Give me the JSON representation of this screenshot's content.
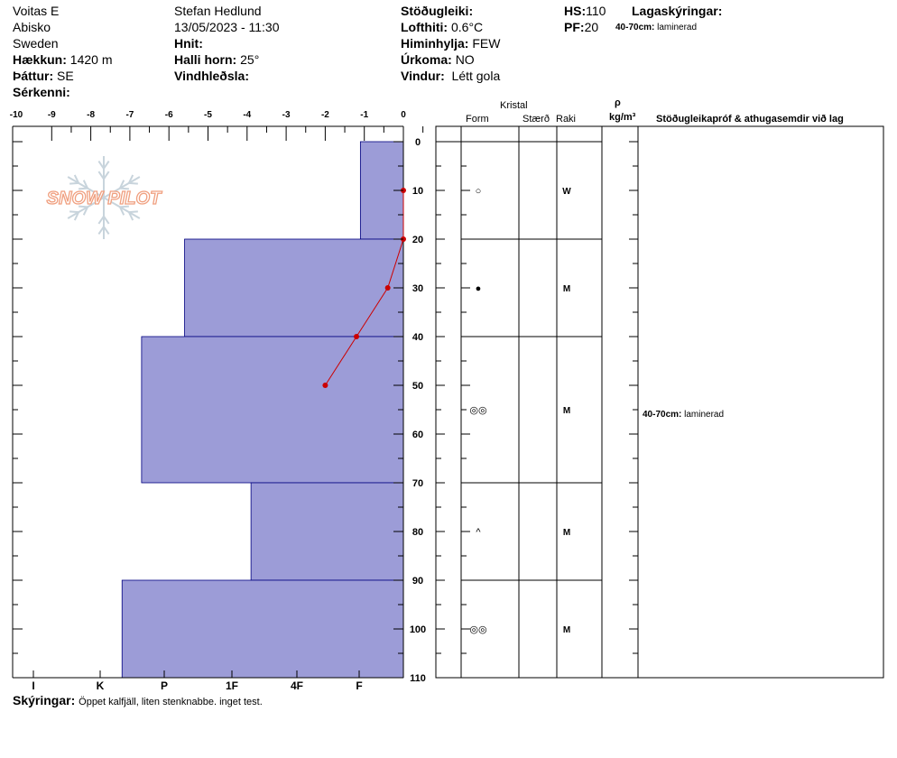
{
  "header": {
    "col1": {
      "location": "Voitas E",
      "region": "Abisko",
      "country": "Sweden",
      "elevation_label": "Hækkun:",
      "elevation": "1420 m",
      "aspect_label": "Þáttur:",
      "aspect": "SE",
      "specifics_label": "Sérkenni:"
    },
    "col2": {
      "observer": "Stefan Hedlund",
      "datetime": "13/05/2023 - 11:30",
      "coords_label": "Hnit:",
      "slope_label": "Halli horn:",
      "slope": "25°",
      "wind_loading_label": "Vindhleðsla:"
    },
    "col3": {
      "stability_label": "Stöðugleiki:",
      "air_temp_label": "Lofthiti:",
      "air_temp": "0.6°C",
      "sky_label": "Himinhylja:",
      "sky": "FEW",
      "precip_label": "Úrkoma:",
      "precip": "NO",
      "wind_label": "Vindur:",
      "wind": "Létt gola"
    },
    "col4": {
      "hs_label": "HS:",
      "hs": "110",
      "pf_label": "PF:",
      "pf": "20",
      "layer_notes_label": "Lagaskýringar:",
      "layer_note_range": "40-70cm:",
      "layer_note_text": "laminerad"
    }
  },
  "logo_text": "SNOW PILOT",
  "table_headers": {
    "crystal": "Kristal",
    "form": "Form",
    "size": "Stærð",
    "moisture": "Raki",
    "rho": "ρ",
    "density_unit": "kg/m³",
    "comments": "Stöðugleikapróf & athugasemdir við lag"
  },
  "comment_rows": [
    {
      "range": "40-70cm:",
      "text": "laminerad"
    }
  ],
  "remarks_label": "Skýringar:",
  "remarks": "Öppet kalfjäll, liten stenknabbe. inget test.",
  "colors": {
    "hardness_fill": "#9c9cd7",
    "temp_line": "#cc0000",
    "logo": "#f0a080"
  },
  "chart_data": {
    "type": "snow_profile",
    "depth_axis": {
      "range": [
        0,
        110
      ],
      "ticks": [
        0,
        10,
        20,
        30,
        40,
        50,
        60,
        70,
        80,
        90,
        100,
        110
      ]
    },
    "temperature_axis": {
      "range": [
        -10,
        0
      ],
      "ticks": [
        -10,
        -9,
        -8,
        -7,
        -6,
        -5,
        -4,
        -3,
        -2,
        -1,
        0
      ]
    },
    "hardness_axis": {
      "labels": [
        "I",
        "K",
        "P",
        "1F",
        "4F",
        "F"
      ]
    },
    "temperature_profile": [
      {
        "depth": 10,
        "temp": 0.0
      },
      {
        "depth": 20,
        "temp": 0.0
      },
      {
        "depth": 30,
        "temp": -0.4
      },
      {
        "depth": 40,
        "temp": -1.2
      },
      {
        "depth": 50,
        "temp": -2.0
      }
    ],
    "layers": [
      {
        "top": 0,
        "bottom": 20,
        "temp_extent": -1.1,
        "form": "○",
        "moisture": "W"
      },
      {
        "top": 20,
        "bottom": 40,
        "temp_extent": -5.6,
        "form": "●",
        "moisture": "M"
      },
      {
        "top": 40,
        "bottom": 70,
        "temp_extent": -6.7,
        "form": "◎◎",
        "moisture": "M"
      },
      {
        "top": 70,
        "bottom": 90,
        "temp_extent": -3.9,
        "form": "^",
        "moisture": "M"
      },
      {
        "top": 90,
        "bottom": 110,
        "temp_extent": -7.2,
        "form": "◎◎",
        "moisture": "M"
      }
    ]
  }
}
